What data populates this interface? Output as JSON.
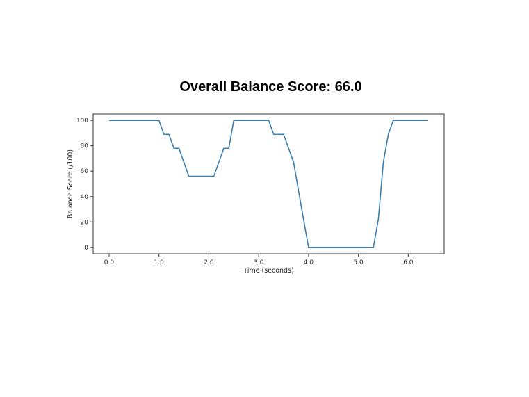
{
  "chart_data": {
    "type": "line",
    "title": "Overall Balance Score: 66.0",
    "xlabel": "Time (seconds)",
    "ylabel": "Balance Score (/100)",
    "xlim": [
      -0.32,
      6.72
    ],
    "ylim": [
      -5,
      105
    ],
    "xticks": [
      0.0,
      1.0,
      2.0,
      3.0,
      4.0,
      5.0,
      6.0
    ],
    "xtick_labels": [
      "0.0",
      "1.0",
      "2.0",
      "3.0",
      "4.0",
      "5.0",
      "6.0"
    ],
    "yticks": [
      0,
      20,
      40,
      60,
      80,
      100
    ],
    "ytick_labels": [
      "0",
      "20",
      "40",
      "60",
      "80",
      "100"
    ],
    "grid": false,
    "series": [
      {
        "color": "#3a7fb2",
        "x": [
          0.0,
          1.0,
          1.1,
          1.2,
          1.3,
          1.4,
          1.6,
          2.1,
          2.3,
          2.4,
          2.5,
          3.2,
          3.3,
          3.5,
          3.7,
          3.9,
          4.0,
          5.3,
          5.4,
          5.5,
          5.6,
          5.7,
          6.4
        ],
        "y": [
          100,
          100,
          89,
          89,
          78,
          78,
          56,
          56,
          78,
          78,
          100,
          100,
          89,
          89,
          67,
          22,
          0,
          0,
          22,
          67,
          89,
          100,
          100
        ]
      }
    ]
  }
}
